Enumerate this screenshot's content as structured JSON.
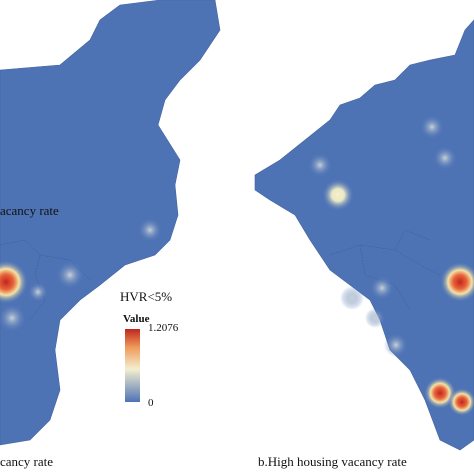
{
  "left_map": {
    "side_caption": "acancy rate",
    "caption": "cancy rate"
  },
  "right_map": {
    "caption": "b.High housing vacancy rate"
  },
  "legend": {
    "title": "HVR<5%",
    "label": "Value",
    "max": "1.2076",
    "min": "0"
  }
}
